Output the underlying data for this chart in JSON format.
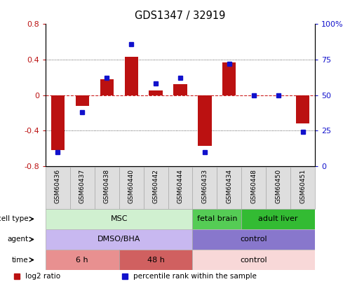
{
  "title": "GDS1347 / 32919",
  "samples": [
    "GSM60436",
    "GSM60437",
    "GSM60438",
    "GSM60440",
    "GSM60442",
    "GSM60444",
    "GSM60433",
    "GSM60434",
    "GSM60448",
    "GSM60450",
    "GSM60451"
  ],
  "log2_ratio": [
    -0.62,
    -0.12,
    0.18,
    0.43,
    0.05,
    0.12,
    -0.57,
    0.37,
    0.0,
    0.0,
    -0.32
  ],
  "percentile_rank": [
    10,
    38,
    62,
    86,
    58,
    62,
    10,
    72,
    50,
    50,
    24
  ],
  "ylim_left": [
    -0.8,
    0.8
  ],
  "ylim_right": [
    0,
    100
  ],
  "yticks_left": [
    -0.8,
    -0.4,
    0.0,
    0.4,
    0.8
  ],
  "ytick_labels_left": [
    "-0.8",
    "-0.4",
    "0",
    "0.4",
    "0.8"
  ],
  "yticks_right": [
    0,
    25,
    50,
    75,
    100
  ],
  "ytick_labels_right": [
    "0",
    "25",
    "50",
    "75",
    "100%"
  ],
  "bar_color": "#bb1111",
  "dot_color": "#1111cc",
  "zero_line_color": "#cc2222",
  "grid_color": "#333333",
  "cell_type_groups": [
    {
      "label": "MSC",
      "start": 0,
      "end": 6,
      "color": "#d0f0d0"
    },
    {
      "label": "fetal brain",
      "start": 6,
      "end": 8,
      "color": "#55cc55"
    },
    {
      "label": "adult liver",
      "start": 8,
      "end": 11,
      "color": "#33bb33"
    }
  ],
  "agent_groups": [
    {
      "label": "DMSO/BHA",
      "start": 0,
      "end": 6,
      "color": "#c8b8f0"
    },
    {
      "label": "control",
      "start": 6,
      "end": 11,
      "color": "#8877cc"
    }
  ],
  "time_groups": [
    {
      "label": "6 h",
      "start": 0,
      "end": 3,
      "color": "#e89090"
    },
    {
      "label": "48 h",
      "start": 3,
      "end": 6,
      "color": "#d06060"
    },
    {
      "label": "control",
      "start": 6,
      "end": 11,
      "color": "#f8d8d8"
    }
  ],
  "row_labels": [
    "cell type",
    "agent",
    "time"
  ],
  "legend_items": [
    {
      "color": "#bb1111",
      "label": "log2 ratio"
    },
    {
      "color": "#1111cc",
      "label": "percentile rank within the sample"
    }
  ],
  "fig_width": 4.99,
  "fig_height": 4.05,
  "dpi": 100
}
